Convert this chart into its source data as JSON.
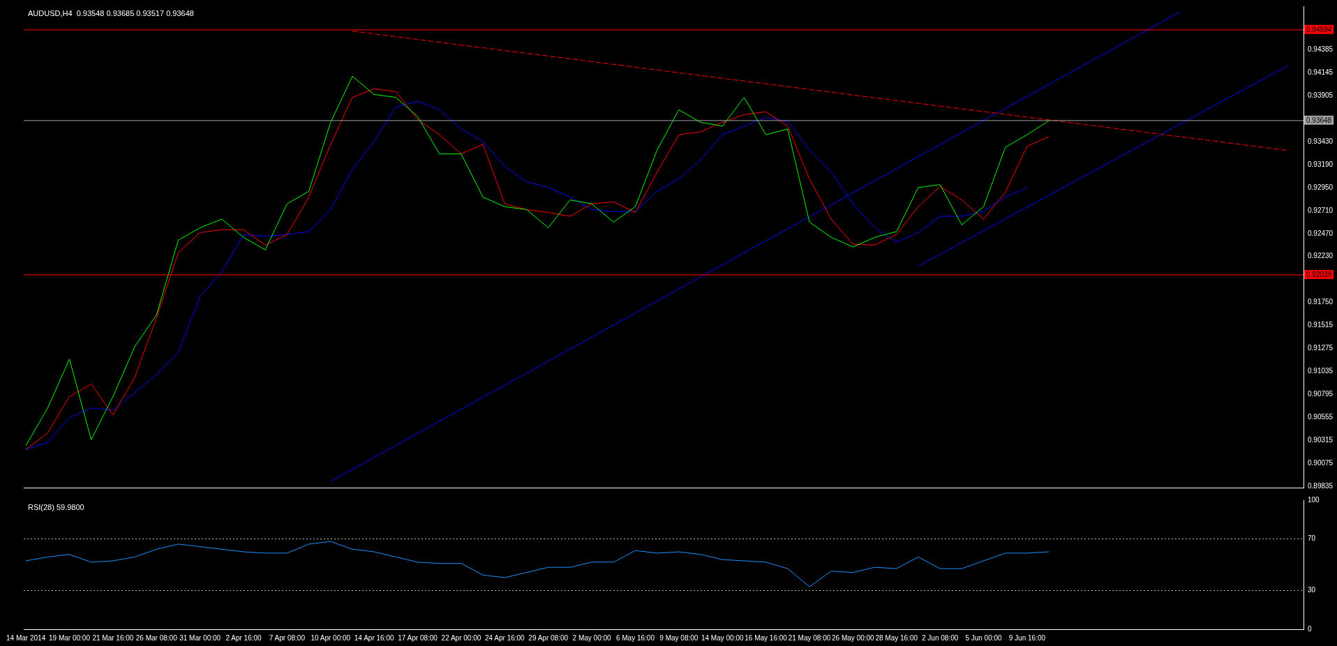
{
  "chart_data": [
    {
      "type": "line",
      "title": "AUDUSD,H4  0.93548 0.93685 0.93517 0.93648",
      "categories": [
        null,
        null,
        null,
        null,
        null,
        null,
        null,
        null,
        null,
        null,
        null,
        null,
        null,
        null,
        null,
        null,
        null,
        null,
        null,
        null,
        null,
        null,
        null,
        null,
        null,
        null,
        null,
        null,
        null,
        null,
        null,
        null,
        null,
        null,
        null,
        null,
        null,
        null,
        null,
        null,
        null,
        null,
        null,
        null,
        null,
        null,
        null,
        null,
        null,
        null,
        null,
        null,
        null,
        null,
        null,
        null,
        null,
        null,
        null
      ],
      "ylim": [
        0.8982,
        0.9484
      ],
      "yticks": [
        {
          "value": 0.89835,
          "label": "0.89835"
        },
        {
          "value": 0.90075,
          "label": "0.90075"
        },
        {
          "value": 0.90315,
          "label": "0.90315"
        },
        {
          "value": 0.90555,
          "label": "0.90555"
        },
        {
          "value": 0.90795,
          "label": "0.90795"
        },
        {
          "value": 0.91035,
          "label": "0.91035"
        },
        {
          "value": 0.91275,
          "label": "0.91275"
        },
        {
          "value": 0.91515,
          "label": "0.91515"
        },
        {
          "value": 0.9175,
          "label": "0.91750"
        },
        {
          "value": 0.9223,
          "label": "0.92230"
        },
        {
          "value": 0.9247,
          "label": "0.92470"
        },
        {
          "value": 0.9271,
          "label": "0.92710"
        },
        {
          "value": 0.9295,
          "label": "0.92950"
        },
        {
          "value": 0.9319,
          "label": "0.93190"
        },
        {
          "value": 0.9343,
          "label": "0.93430"
        },
        {
          "value": 0.93905,
          "label": "0.93905"
        },
        {
          "value": 0.94145,
          "label": "0.94145"
        },
        {
          "value": 0.94385,
          "label": "0.94385"
        }
      ],
      "tick_labels": "y",
      "marker": "none",
      "series": [
        {
          "color": "#00ff00",
          "values": [
            0.9026,
            0.9065,
            0.9116,
            0.9032,
            0.9077,
            0.9129,
            0.9162,
            0.924,
            0.9253,
            0.9262,
            0.9243,
            0.923,
            0.9278,
            0.9291,
            0.9363,
            0.9411,
            0.9392,
            0.9389,
            0.9369,
            0.933,
            0.933,
            0.9285,
            0.9275,
            0.9272,
            0.9253,
            0.9282,
            0.9278,
            0.9259,
            0.9275,
            0.9334,
            0.9376,
            0.9363,
            0.9359,
            0.9389,
            0.935,
            0.9356,
            0.9259,
            0.9243,
            0.9233,
            0.9243,
            0.9249,
            0.9295,
            0.9298,
            0.9256,
            0.9275,
            0.9337,
            0.935,
            0.93648,
            null,
            null,
            null,
            null,
            null,
            null,
            null,
            null,
            null,
            null,
            null
          ]
        },
        {
          "color": "#ff0000",
          "values": [
            0.9022,
            0.9039,
            0.9077,
            0.909,
            0.9058,
            0.9097,
            0.9159,
            0.9227,
            0.9248,
            0.9251,
            0.9251,
            0.9235,
            0.9246,
            0.9285,
            0.934,
            0.9389,
            0.9398,
            0.9395,
            0.9366,
            0.935,
            0.933,
            0.934,
            0.9278,
            0.9272,
            0.9269,
            0.9265,
            0.9278,
            0.928,
            0.9269,
            0.9311,
            0.935,
            0.9353,
            0.9363,
            0.9371,
            0.9374,
            0.9359,
            0.9304,
            0.9262,
            0.9236,
            0.9235,
            0.9246,
            0.9275,
            0.9296,
            0.9282,
            0.9262,
            0.929,
            0.9338,
            0.9348,
            null,
            null,
            null,
            null,
            null,
            null,
            null,
            null,
            null,
            null,
            null
          ]
        },
        {
          "color": "#0000ff",
          "values": [
            0.9022,
            0.9029,
            0.9055,
            0.9065,
            0.9063,
            0.9081,
            0.91,
            0.9123,
            0.9181,
            0.9207,
            0.9246,
            0.9244,
            0.9246,
            0.9249,
            0.9272,
            0.9314,
            0.9343,
            0.9379,
            0.9385,
            0.9376,
            0.9356,
            0.9343,
            0.9317,
            0.9301,
            0.9295,
            0.9285,
            0.9272,
            0.927,
            0.927,
            0.9291,
            0.9304,
            0.9324,
            0.935,
            0.9359,
            0.9368,
            0.9364,
            0.9334,
            0.9311,
            0.9278,
            0.9253,
            0.9238,
            0.9248,
            0.9265,
            0.9265,
            0.927,
            0.9285,
            0.9295,
            null,
            null,
            null,
            null,
            null,
            null,
            null,
            null,
            null,
            null,
            null,
            null
          ]
        },
        {
          "color": "#ff0000",
          "line_style": "dashed",
          "values": [
            null,
            null,
            null,
            null,
            null,
            null,
            null,
            null,
            null,
            null,
            null,
            null,
            null,
            null,
            null,
            0.94581,
            0.94552,
            0.94523,
            0.94494,
            0.94465,
            0.94436,
            0.94407,
            0.94378,
            0.9435,
            0.94321,
            0.94292,
            0.94263,
            0.94234,
            0.94205,
            0.94176,
            0.94147,
            0.94118,
            0.94089,
            0.9406,
            0.94031,
            0.94002,
            0.93973,
            0.93944,
            0.93915,
            0.93886,
            0.93857,
            0.93828,
            0.93799,
            0.9377,
            0.93742,
            0.93713,
            0.93684,
            0.93655,
            0.93626,
            0.93597,
            0.93568,
            0.93539,
            0.9351,
            0.93481,
            0.93452,
            0.93423,
            0.93394,
            0.93365,
            0.93336
          ]
        },
        {
          "color": "#0000ff",
          "values": [
            null,
            null,
            null,
            null,
            null,
            null,
            null,
            null,
            null,
            null,
            null,
            null,
            null,
            null,
            0.89885,
            0.9001,
            0.90136,
            0.90261,
            0.90387,
            0.90512,
            0.90638,
            0.90763,
            0.90889,
            0.91014,
            0.91139,
            0.91265,
            0.9139,
            0.91516,
            0.91641,
            0.91767,
            0.91892,
            0.92018,
            0.92143,
            0.92269,
            0.92394,
            0.92519,
            0.92645,
            0.9277,
            0.92896,
            0.93021,
            0.93147,
            0.93272,
            0.93398,
            0.93523,
            0.93649,
            0.93774,
            0.939,
            0.94025,
            0.94151,
            0.94276,
            0.94401,
            0.94527,
            0.94652,
            0.94778,
            null,
            null,
            null,
            null,
            null
          ]
        },
        {
          "color": "#0000ff",
          "values": [
            null,
            null,
            null,
            null,
            null,
            null,
            null,
            null,
            null,
            null,
            null,
            null,
            null,
            null,
            null,
            null,
            null,
            null,
            null,
            null,
            null,
            null,
            null,
            null,
            null,
            null,
            null,
            null,
            null,
            null,
            null,
            null,
            null,
            null,
            null,
            null,
            null,
            null,
            null,
            null,
            null,
            0.9213,
            0.92253,
            0.92376,
            0.92499,
            0.92623,
            0.92746,
            0.92869,
            0.92992,
            0.93115,
            0.93238,
            0.93361,
            0.93485,
            0.93608,
            0.93731,
            0.93854,
            0.93977,
            0.941,
            0.94223
          ]
        }
      ],
      "ref_lines": [
        {
          "axis": "y",
          "value": 0.94594,
          "label": "0.94594",
          "color": "#ff0000",
          "line_style": "solid"
        },
        {
          "axis": "y",
          "value": 0.93648,
          "label": "0.93648",
          "color": "#a0a0a4",
          "line_style": "solid"
        },
        {
          "axis": "y",
          "value": 0.92039,
          "label": "0.92039",
          "color": "#ff0000",
          "line_style": "solid"
        }
      ]
    },
    {
      "type": "line",
      "title": "RSI(28) 59.9800",
      "categories": [
        "14 Mar 2014",
        null,
        "19 Mar 00:00",
        null,
        "21 Mar 16:00",
        null,
        "26 Mar 08:00",
        null,
        "31 Mar 00:00",
        null,
        "2 Apr 16:00",
        null,
        "7 Apr 08:00",
        null,
        "10 Apr 00:00",
        null,
        "14 Apr 16:00",
        null,
        "17 Apr 08:00",
        null,
        "22 Apr 00:00",
        null,
        "24 Apr 16:00",
        null,
        "29 Apr 08:00",
        null,
        "2 May 00:00",
        null,
        "6 May 16:00",
        null,
        "9 May 08:00",
        null,
        "14 May 00:00",
        null,
        "16 May 16:00",
        null,
        "21 May 08:00",
        null,
        "26 May 00:00",
        null,
        "28 May 16:00",
        null,
        "2 Jun 08:00",
        null,
        "5 Jun 00:00",
        null,
        "9 Jun 16:00",
        null,
        null,
        null,
        null,
        null,
        null,
        null,
        null,
        null,
        null,
        null,
        null
      ],
      "ylim": [
        0,
        100
      ],
      "yticks": [
        0,
        30,
        70,
        100
      ],
      "marker": "none",
      "series": [
        {
          "color": "#1e90ff",
          "values": [
            53,
            56,
            58,
            52,
            53,
            56,
            62,
            66,
            64,
            62,
            60,
            59,
            59,
            66,
            68,
            62,
            60,
            56,
            52,
            51,
            51,
            42,
            40,
            44,
            48,
            48,
            52,
            52,
            61,
            59,
            60,
            58,
            54,
            53,
            52,
            47,
            33,
            45,
            44,
            48,
            47,
            56,
            47,
            47,
            53,
            59,
            59,
            60,
            null,
            null,
            null,
            null,
            null,
            null,
            null,
            null,
            null,
            null,
            null
          ]
        }
      ],
      "ref_lines": [
        {
          "axis": "y",
          "value": 70,
          "color": "#c0c0c0",
          "line_style": "dotted"
        },
        {
          "axis": "y",
          "value": 30,
          "color": "#c0c0c0",
          "line_style": "dotted"
        }
      ]
    }
  ]
}
